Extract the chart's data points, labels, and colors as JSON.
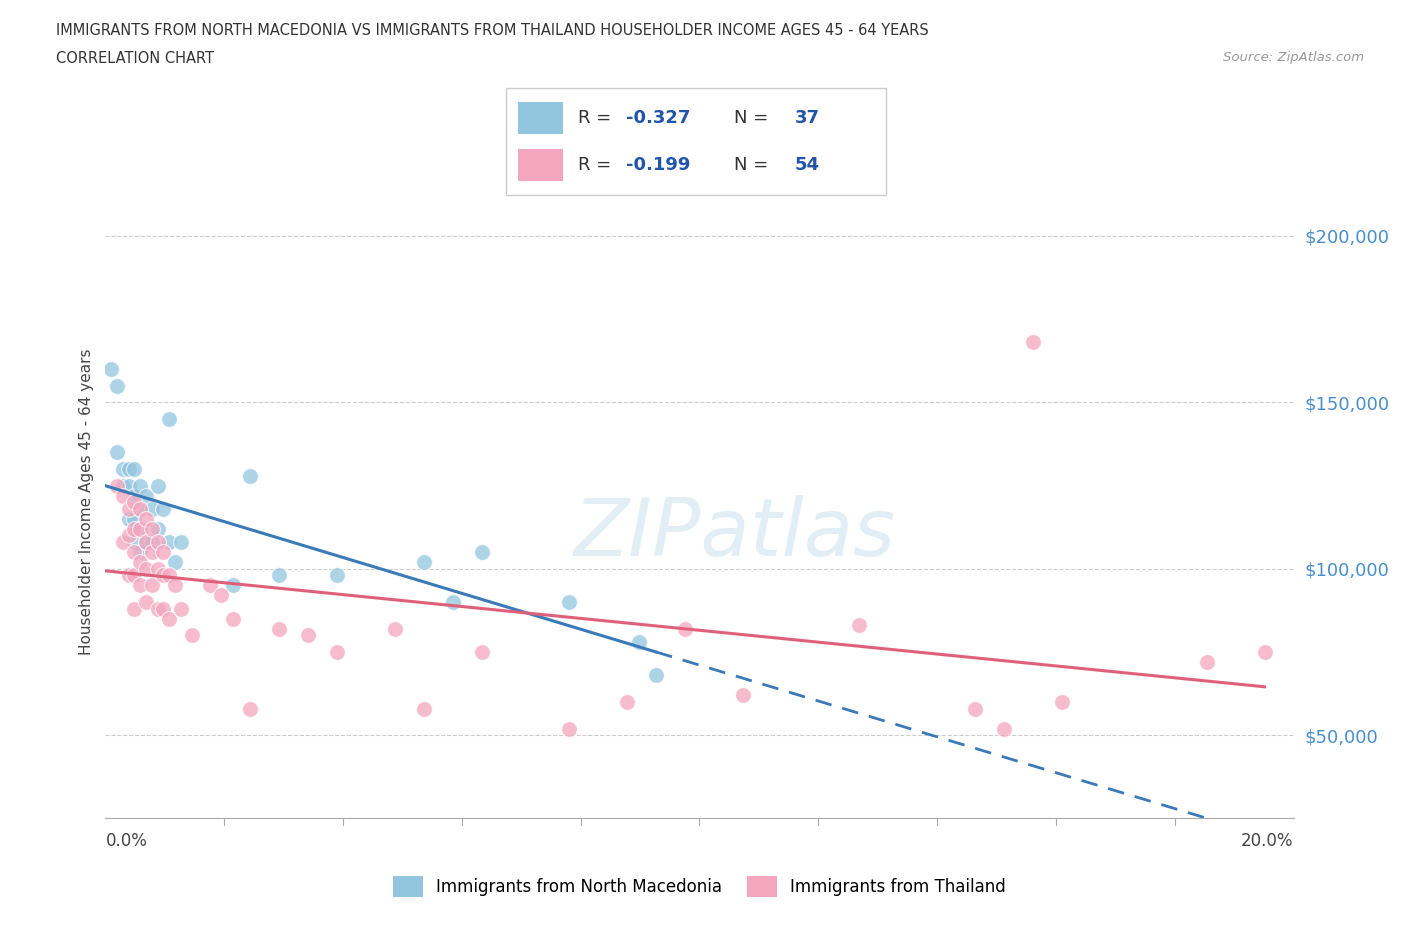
{
  "title_line1": "IMMIGRANTS FROM NORTH MACEDONIA VS IMMIGRANTS FROM THAILAND HOUSEHOLDER INCOME AGES 45 - 64 YEARS",
  "title_line2": "CORRELATION CHART",
  "source_text": "Source: ZipAtlas.com",
  "ylabel": "Householder Income Ages 45 - 64 years",
  "r_mac": -0.327,
  "n_mac": 37,
  "r_thai": -0.199,
  "n_thai": 54,
  "legend_label_mac": "Immigrants from North Macedonia",
  "legend_label_thai": "Immigrants from Thailand",
  "color_mac": "#92c5de",
  "color_thai": "#f4a6be",
  "color_mac_line": "#3a7ab8",
  "color_thai_line": "#e0607a",
  "xlim": [
    0.0,
    0.205
  ],
  "ylim": [
    25000,
    215000
  ],
  "yticks": [
    50000,
    100000,
    150000,
    200000
  ],
  "ytick_right_labels": [
    "$50,000",
    "$100,000",
    "$150,000",
    "$200,000"
  ],
  "mac_x": [
    0.001,
    0.002,
    0.002,
    0.003,
    0.003,
    0.004,
    0.004,
    0.004,
    0.005,
    0.005,
    0.005,
    0.005,
    0.006,
    0.006,
    0.006,
    0.006,
    0.007,
    0.007,
    0.008,
    0.008,
    0.009,
    0.009,
    0.01,
    0.011,
    0.011,
    0.012,
    0.013,
    0.022,
    0.025,
    0.03,
    0.04,
    0.055,
    0.06,
    0.065,
    0.08,
    0.092,
    0.095
  ],
  "mac_y": [
    160000,
    155000,
    135000,
    130000,
    125000,
    130000,
    125000,
    115000,
    130000,
    122000,
    115000,
    108000,
    125000,
    118000,
    112000,
    105000,
    122000,
    108000,
    118000,
    108000,
    125000,
    112000,
    118000,
    145000,
    108000,
    102000,
    108000,
    95000,
    128000,
    98000,
    98000,
    102000,
    90000,
    105000,
    90000,
    78000,
    68000
  ],
  "thai_x": [
    0.002,
    0.003,
    0.003,
    0.004,
    0.004,
    0.004,
    0.005,
    0.005,
    0.005,
    0.005,
    0.005,
    0.006,
    0.006,
    0.006,
    0.006,
    0.007,
    0.007,
    0.007,
    0.007,
    0.008,
    0.008,
    0.008,
    0.009,
    0.009,
    0.009,
    0.01,
    0.01,
    0.01,
    0.011,
    0.011,
    0.012,
    0.013,
    0.015,
    0.018,
    0.02,
    0.022,
    0.025,
    0.03,
    0.035,
    0.04,
    0.05,
    0.055,
    0.065,
    0.08,
    0.09,
    0.1,
    0.11,
    0.13,
    0.15,
    0.155,
    0.16,
    0.165,
    0.19,
    0.2
  ],
  "thai_y": [
    125000,
    122000,
    108000,
    118000,
    110000,
    98000,
    120000,
    112000,
    105000,
    98000,
    88000,
    118000,
    112000,
    102000,
    95000,
    115000,
    108000,
    100000,
    90000,
    112000,
    105000,
    95000,
    108000,
    100000,
    88000,
    105000,
    98000,
    88000,
    98000,
    85000,
    95000,
    88000,
    80000,
    95000,
    92000,
    85000,
    58000,
    82000,
    80000,
    75000,
    82000,
    58000,
    75000,
    52000,
    60000,
    82000,
    62000,
    83000,
    58000,
    52000,
    168000,
    60000,
    72000,
    75000
  ]
}
